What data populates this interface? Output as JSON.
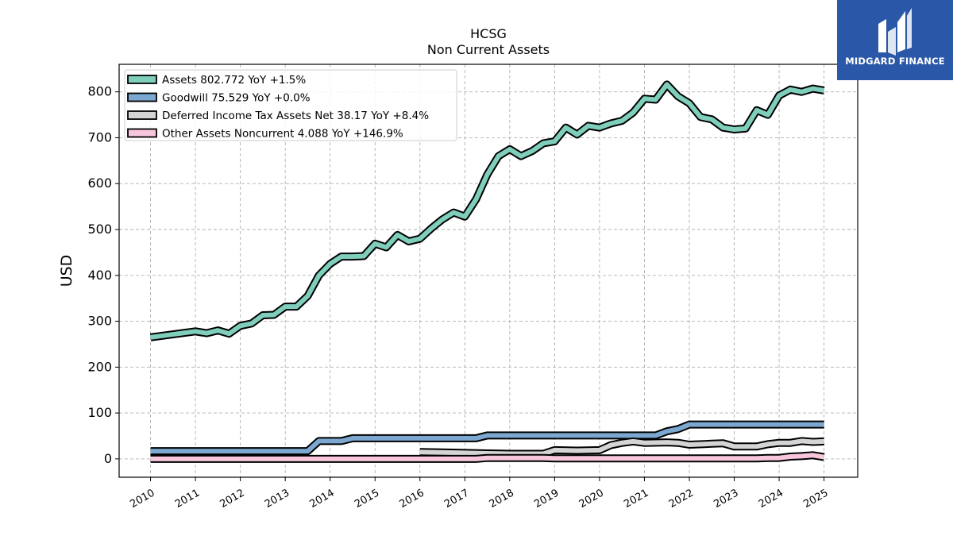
{
  "brand": {
    "name": "MIDGARD FINANCE",
    "logo_icon": "midgard-logo-icon",
    "bg_color": "#2a57a8"
  },
  "chart_data": {
    "type": "line",
    "title": "HCSG",
    "subtitle": "Non Current  Assets",
    "ylabel": "USD",
    "xlabel": "",
    "ylim": [
      -40,
      860
    ],
    "xlim": [
      2009.3,
      2025.75
    ],
    "yticks": [
      0,
      100,
      200,
      300,
      400,
      500,
      600,
      700,
      800
    ],
    "xticks": [
      "2010",
      "2011",
      "2012",
      "2013",
      "2014",
      "2015",
      "2016",
      "2017",
      "2018",
      "2019",
      "2020",
      "2021",
      "2022",
      "2023",
      "2024",
      "2025"
    ],
    "grid": true,
    "legend_position": "top-left",
    "series": [
      {
        "name": "Assets",
        "legend": "Assets  802.772 YoY +1.5%",
        "color": "#7fcdbb",
        "x": [
          2010.0,
          2011.0,
          2011.25,
          2011.5,
          2011.75,
          2012.0,
          2012.25,
          2012.5,
          2012.75,
          2013.0,
          2013.25,
          2013.5,
          2013.75,
          2014.0,
          2014.25,
          2014.5,
          2014.75,
          2015.0,
          2015.25,
          2015.5,
          2015.75,
          2016.0,
          2016.25,
          2016.5,
          2016.75,
          2017.0,
          2017.25,
          2017.5,
          2017.75,
          2018.0,
          2018.25,
          2018.5,
          2018.75,
          2019.0,
          2019.25,
          2019.5,
          2019.75,
          2020.0,
          2020.25,
          2020.5,
          2020.75,
          2021.0,
          2021.25,
          2021.5,
          2021.75,
          2022.0,
          2022.25,
          2022.5,
          2022.75,
          2023.0,
          2023.25,
          2023.5,
          2023.75,
          2024.0,
          2024.25,
          2024.5,
          2024.75,
          2025.0
        ],
        "values": [
          265,
          278,
          274,
          280,
          273,
          290,
          295,
          313,
          314,
          332,
          332,
          355,
          400,
          425,
          441,
          441,
          442,
          469,
          461,
          488,
          474,
          480,
          502,
          522,
          537,
          528,
          566,
          620,
          660,
          675,
          660,
          671,
          688,
          692,
          722,
          707,
          726,
          722,
          731,
          737,
          755,
          785,
          783,
          816,
          790,
          775,
          745,
          740,
          722,
          718,
          720,
          760,
          750,
          792,
          805,
          800,
          807,
          803
        ]
      },
      {
        "name": "Goodwill",
        "legend": "Goodwill  75.529 YoY +0.0%",
        "color": "#7ba7d0",
        "x": [
          2010.0,
          2013.5,
          2013.75,
          2014.25,
          2014.5,
          2017.25,
          2017.5,
          2021.25,
          2021.5,
          2021.75,
          2022.0,
          2025.0
        ],
        "values": [
          17,
          17,
          39,
          39,
          45,
          45,
          51,
          51,
          60,
          65,
          75,
          75
        ]
      },
      {
        "name": "Deferred Income Tax Assets Net",
        "legend": "Deferred Income Tax Assets Net  38.17 YoY +8.4%",
        "color": "#d4d4d4",
        "x": [
          2016.0,
          2016.5,
          2017.0,
          2017.5,
          2018.0,
          2018.75,
          2019.0,
          2019.5,
          2020.0,
          2020.25,
          2020.5,
          2020.75,
          2021.0,
          2021.5,
          2021.75,
          2022.0,
          2022.5,
          2022.75,
          2023.0,
          2023.5,
          2023.75,
          2024.0,
          2024.25,
          2024.5,
          2024.75,
          2025.0
        ],
        "values": [
          15,
          14,
          13,
          12,
          11,
          11,
          19,
          18,
          19,
          30,
          35,
          38,
          35,
          36,
          35,
          31,
          33,
          34,
          27,
          27,
          32,
          35,
          35,
          39,
          37,
          38
        ]
      },
      {
        "name": "Other Assets Noncurrent",
        "legend": "Other Assets Noncurrent  4.088 YoY +146.9%",
        "color": "#f7c6dc",
        "x": [
          2010.0,
          2017.25,
          2017.5,
          2018.75,
          2019.0,
          2023.5,
          2023.75,
          2024.0,
          2024.25,
          2024.5,
          2024.75,
          2025.0
        ],
        "values": [
          0,
          0,
          2,
          2,
          1,
          1,
          2,
          2,
          5,
          6,
          8,
          4
        ]
      }
    ]
  }
}
